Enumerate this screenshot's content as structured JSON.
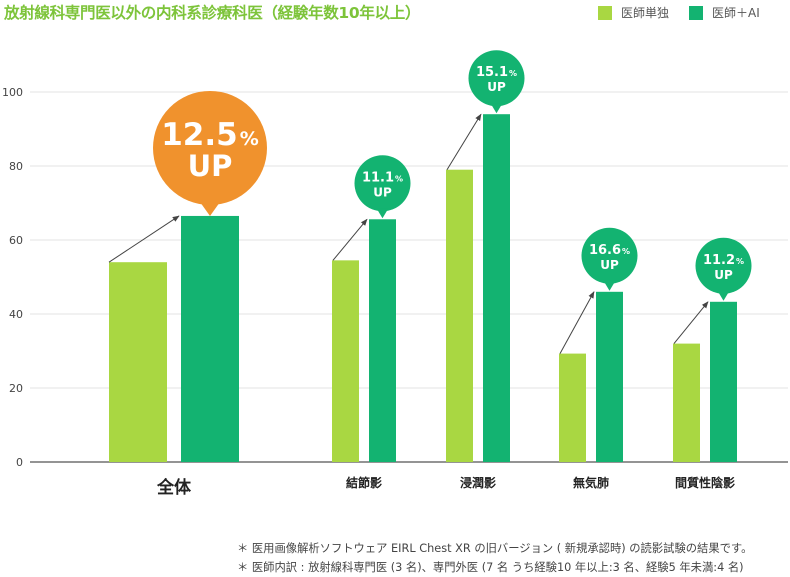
{
  "title": "放射線科専門医以外の内科系診療科医（経験年数10年以上）",
  "colors": {
    "title": "#7dc43a",
    "doctor_only": "#a9d742",
    "doctor_ai": "#13b371",
    "highlight": "#f0922d",
    "axis": "#555555",
    "grid": "#e3e3e3"
  },
  "chart_data": {
    "type": "bar",
    "title": "放射線科専門医以外の内科系診療科医（経験年数10年以上）",
    "categories": [
      "全体",
      "結節影",
      "浸潤影",
      "無気肺",
      "間質性陰影"
    ],
    "series": [
      {
        "name": "医師単独",
        "values": [
          54,
          54.5,
          79,
          29.3,
          32
        ]
      },
      {
        "name": "医師＋AI",
        "values": [
          66.5,
          65.6,
          94,
          46,
          43.3
        ]
      }
    ],
    "improvement": [
      {
        "value": "12.5",
        "unit": "%",
        "label": "UP",
        "highlight": true
      },
      {
        "value": "11.1",
        "unit": "%",
        "label": "UP",
        "highlight": false
      },
      {
        "value": "15.1",
        "unit": "%",
        "label": "UP",
        "highlight": false
      },
      {
        "value": "16.6",
        "unit": "%",
        "label": "UP",
        "highlight": false
      },
      {
        "value": "11.2",
        "unit": "%",
        "label": "UP",
        "highlight": false
      }
    ],
    "yticks": [
      "0",
      "20",
      "40",
      "60",
      "80",
      "100"
    ],
    "ylim": [
      0,
      100
    ],
    "grid": true,
    "legend_position": "top-right",
    "xlabel": "",
    "ylabel": ""
  },
  "notes": [
    "＊ 医用画像解析ソフトウェア EIRL Chest XR の旧バージョン ( 新規承認時) の読影試験の結果です。",
    "＊ 医師内訳 : 放射線科専門医 (3 名)、専門外医 (7 名 うち経験10 年以上:3 名、経験5 年未満:4 名)"
  ]
}
